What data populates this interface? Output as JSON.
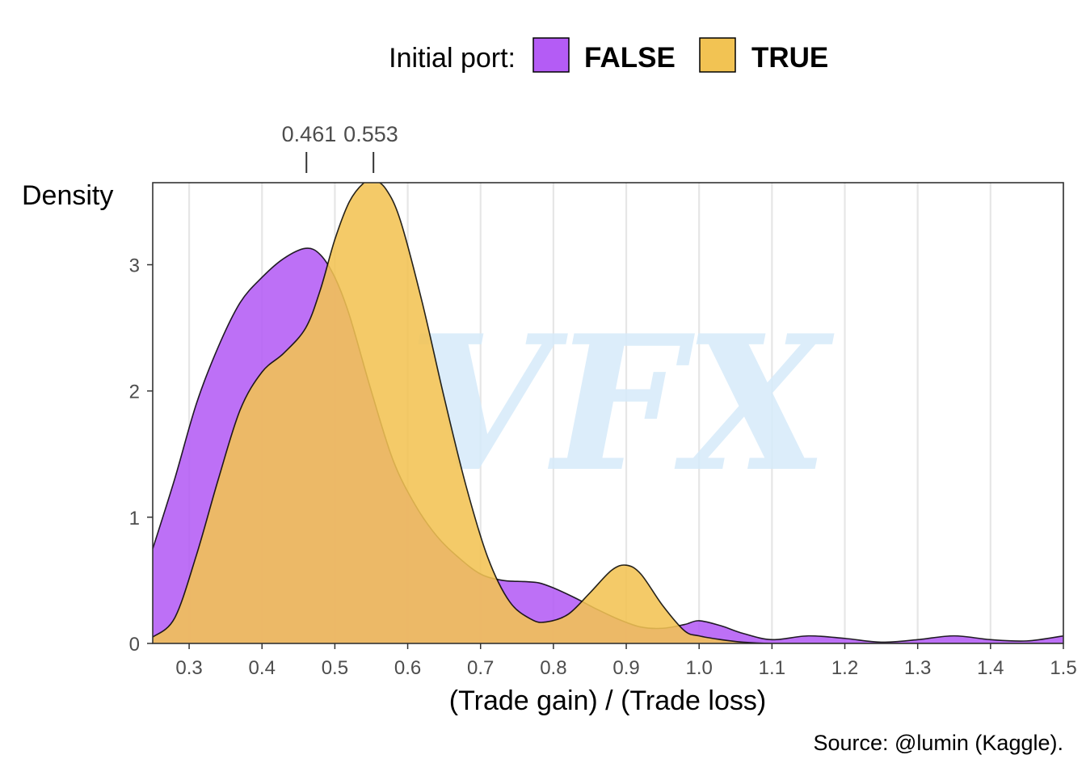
{
  "chart_data": {
    "type": "area",
    "xlabel": "(Trade gain) / (Trade loss)",
    "ylabel": "Density",
    "caption": "Source: @lumin (Kaggle).",
    "watermark": "VFX",
    "legend": {
      "title": "Initial port:",
      "position": "top",
      "entries": [
        {
          "label": "FALSE",
          "color": "#b45cf5"
        },
        {
          "label": "TRUE",
          "color": "#f2c353"
        }
      ]
    },
    "xlim": [
      0.25,
      1.5
    ],
    "ylim": [
      0,
      3.65
    ],
    "x_ticks": [
      "0.3",
      "0.4",
      "0.5",
      "0.6",
      "0.7",
      "0.8",
      "0.9",
      "1.0",
      "1.1",
      "1.2",
      "1.3",
      "1.4",
      "1.5"
    ],
    "y_ticks": [
      "0",
      "1",
      "2",
      "3"
    ],
    "grid": "vertical",
    "annotations": [
      {
        "label": "0.461",
        "x": 0.461
      },
      {
        "label": "0.553",
        "x": 0.553
      }
    ],
    "series": [
      {
        "name": "FALSE",
        "color": "#b45cf5",
        "x": [
          0.25,
          0.28,
          0.31,
          0.34,
          0.37,
          0.4,
          0.43,
          0.46,
          0.48,
          0.5,
          0.52,
          0.55,
          0.58,
          0.61,
          0.64,
          0.67,
          0.7,
          0.73,
          0.76,
          0.78,
          0.8,
          0.83,
          0.86,
          0.89,
          0.92,
          0.95,
          0.98,
          1.0,
          1.03,
          1.06,
          1.1,
          1.15,
          1.2,
          1.25,
          1.3,
          1.35,
          1.4,
          1.45,
          1.5
        ],
        "values": [
          0.75,
          1.3,
          1.9,
          2.35,
          2.7,
          2.9,
          3.05,
          3.13,
          3.08,
          2.9,
          2.6,
          2.0,
          1.45,
          1.1,
          0.85,
          0.68,
          0.55,
          0.5,
          0.49,
          0.48,
          0.44,
          0.36,
          0.27,
          0.19,
          0.13,
          0.12,
          0.15,
          0.18,
          0.14,
          0.08,
          0.03,
          0.06,
          0.04,
          0.01,
          0.03,
          0.06,
          0.03,
          0.02,
          0.06
        ]
      },
      {
        "name": "TRUE",
        "color": "#f2c353",
        "x": [
          0.25,
          0.28,
          0.31,
          0.34,
          0.37,
          0.4,
          0.43,
          0.46,
          0.48,
          0.5,
          0.52,
          0.54,
          0.553,
          0.57,
          0.59,
          0.62,
          0.65,
          0.68,
          0.71,
          0.74,
          0.77,
          0.79,
          0.82,
          0.85,
          0.88,
          0.9,
          0.92,
          0.95,
          0.98,
          1.0,
          1.03,
          1.06,
          1.1,
          1.15,
          1.2,
          1.3,
          1.4,
          1.5
        ],
        "values": [
          0.05,
          0.2,
          0.7,
          1.3,
          1.85,
          2.15,
          2.3,
          2.5,
          2.8,
          3.2,
          3.5,
          3.65,
          3.67,
          3.6,
          3.35,
          2.7,
          1.95,
          1.25,
          0.68,
          0.33,
          0.19,
          0.17,
          0.23,
          0.4,
          0.58,
          0.62,
          0.55,
          0.3,
          0.1,
          0.06,
          0.03,
          0.01,
          0.0,
          0.0,
          0.0,
          0.0,
          0.0,
          0.0
        ]
      }
    ]
  }
}
